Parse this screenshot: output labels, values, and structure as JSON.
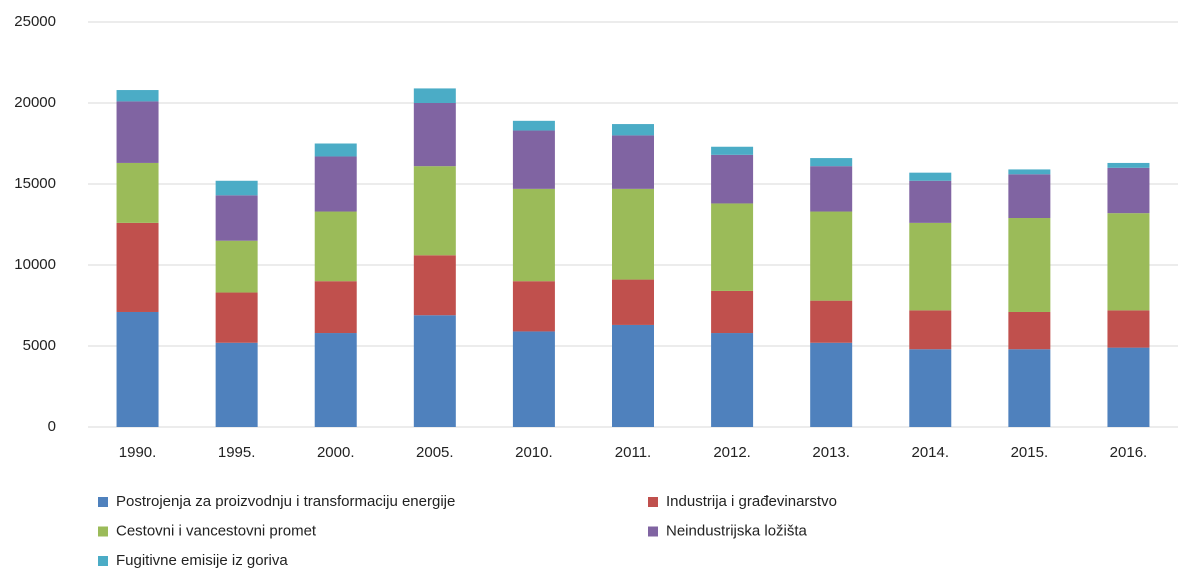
{
  "chart_data": {
    "type": "stacked_bar",
    "categories": [
      "1990.",
      "1995.",
      "2000.",
      "2005.",
      "2010.",
      "2011.",
      "2012.",
      "2013.",
      "2014.",
      "2015.",
      "2016."
    ],
    "series": [
      {
        "name": "Postrojenja za proizvodnju i transformaciju energije",
        "color": "#4f81bd",
        "values": [
          7100,
          5200,
          5800,
          6900,
          5900,
          6300,
          5800,
          5200,
          4800,
          4800,
          4900
        ]
      },
      {
        "name": "Industrija i građevinarstvo",
        "color": "#c0504d",
        "values": [
          5500,
          3100,
          3200,
          3700,
          3100,
          2800,
          2600,
          2600,
          2400,
          2300,
          2300
        ]
      },
      {
        "name": "Cestovni i vancestovni promet",
        "color": "#9bbb59",
        "values": [
          3700,
          3200,
          4300,
          5500,
          5700,
          5600,
          5400,
          5500,
          5400,
          5800,
          6000
        ]
      },
      {
        "name": "Neindustrijska ložišta",
        "color": "#8064a2",
        "values": [
          3800,
          2800,
          3400,
          3900,
          3600,
          3300,
          3000,
          2800,
          2600,
          2700,
          2800
        ]
      },
      {
        "name": "Fugitivne emisije iz goriva",
        "color": "#4bacc6",
        "values": [
          700,
          900,
          800,
          900,
          600,
          700,
          500,
          500,
          500,
          300,
          300
        ]
      }
    ],
    "ylim": [
      0,
      25000
    ],
    "yticks": [
      0,
      5000,
      10000,
      15000,
      20000,
      25000
    ],
    "grid": true
  }
}
